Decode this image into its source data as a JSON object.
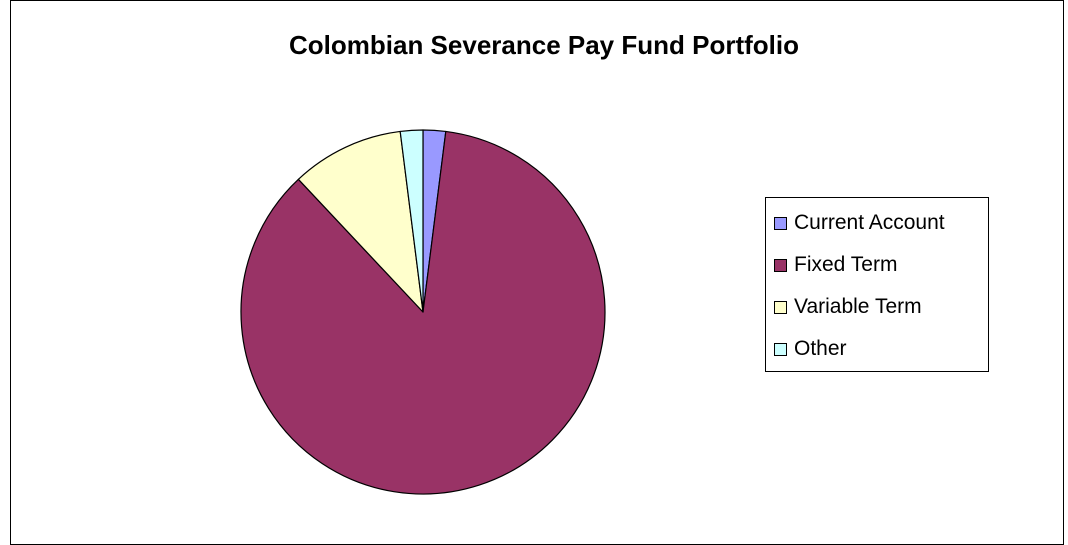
{
  "chart_data": {
    "type": "pie",
    "title": "Colombian Severance Pay Fund Portfolio",
    "categories": [
      "Current Account",
      "Fixed Term",
      "Variable Term",
      "Other"
    ],
    "values": [
      2,
      86,
      10,
      2
    ],
    "unit": "%",
    "start_angle_deg": 0,
    "direction": "clockwise",
    "legend_position": "right",
    "colors": [
      "#9999ff",
      "#993366",
      "#ffffcc",
      "#ccffff"
    ],
    "stroke_color": "#000000"
  }
}
